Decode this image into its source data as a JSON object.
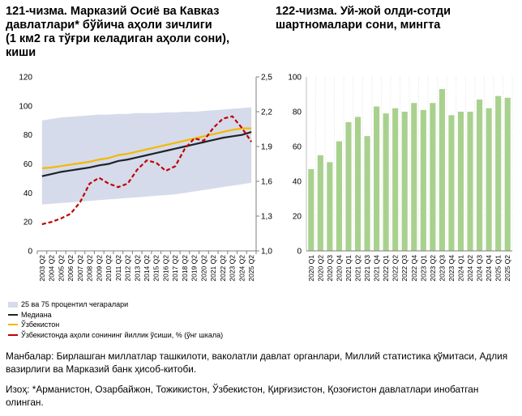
{
  "left_chart": {
    "title_lines": [
      "121-чизма. Марказий Осиё ва Кавказ",
      "давлатлари* бўйича аҳоли зичлиги",
      "(1 км2 га тўғри келадиган аҳоли сони),",
      "киши"
    ],
    "legend": [
      "25 ва 75 процентил чегаралари",
      "Медиана",
      "Ўзбекистон",
      "Ўзбекистонда аҳоли сонининг йиллик ўсиши, % (ўнг шкала)"
    ]
  },
  "right_chart": {
    "title_lines": [
      "122-чизма. Уй-жой олди-сотди",
      "шартномалари сони, мингта"
    ]
  },
  "notes": {
    "source": "Манбалар: Бирлашган миллатлар ташкилоти, ваколатли давлат органлари, Миллий статистика қўмитаси, Адлия вазирлиги ва Марказий банк ҳисоб-китоби.",
    "remark": "Изоҳ: *Арманистон, Озарбайжон, Тожикистон, Ўзбекистон, Қирғизистон, Қозоғистон давлатлари инобатган олинган."
  },
  "chart_data": [
    {
      "type": "line",
      "title": "121-чизма. Марказий Осиё ва Кавказ давлатлари* бўйича аҳоли зичлиги (1 км2 га тўғри келадиган аҳоли сони), киши",
      "x": [
        "2003 Q2",
        "2004 Q2",
        "2005 Q2",
        "2006 Q2",
        "2007 Q2",
        "2008 Q2",
        "2009 Q2",
        "2010 Q2",
        "2011 Q2",
        "2012 Q2",
        "2013 Q2",
        "2014 Q2",
        "2015 Q2",
        "2016 Q2",
        "2017 Q2",
        "2018 Q2",
        "2019 Q2",
        "2020 Q2",
        "2021 Q2",
        "2022 Q2",
        "2023 Q2",
        "2024 Q2",
        "2025 Q2"
      ],
      "ylim": [
        0,
        120
      ],
      "yticks": [
        "0",
        "20",
        "40",
        "60",
        "80",
        "100",
        "120"
      ],
      "y2lim": [
        1.0,
        2.5
      ],
      "y2ticks": [
        "1,0",
        "1,3",
        "1,6",
        "1,9",
        "2,2",
        "2,5"
      ],
      "series": [
        {
          "name": "25 ва 75 процентил чегаралари (25)",
          "axis": "left",
          "values": [
            32,
            32.5,
            33,
            33.5,
            34,
            34.5,
            35,
            35.5,
            36,
            36.5,
            37,
            37.5,
            38,
            38.5,
            39,
            40,
            41,
            42,
            43,
            44,
            45,
            46,
            47
          ]
        },
        {
          "name": "25 ва 75 процентил чегаралари (75)",
          "axis": "left",
          "values": [
            90,
            91,
            92,
            92.5,
            93,
            93.5,
            94,
            94,
            94.5,
            94.5,
            95,
            95,
            95,
            95.5,
            95.5,
            96,
            96,
            96.5,
            97,
            97.5,
            98,
            98.5,
            99
          ]
        },
        {
          "name": "Медиана",
          "axis": "left",
          "values": [
            51.5,
            53,
            54.5,
            55.5,
            56.5,
            57.5,
            59,
            60,
            62,
            63,
            64.5,
            66,
            67.5,
            69,
            70.5,
            72,
            73.5,
            75,
            76.5,
            78,
            79,
            80,
            82
          ]
        },
        {
          "name": "Ўзбекистон",
          "axis": "left",
          "values": [
            57,
            57.5,
            58.5,
            59.5,
            60.5,
            61.5,
            63,
            64,
            66,
            67,
            68.5,
            70,
            71.5,
            73,
            74.5,
            76,
            77.5,
            79,
            80.5,
            82,
            83.5,
            84.5,
            84.5
          ]
        },
        {
          "name": "Ўзбекистонда аҳоли сонининг йиллик ўсиши, % (ўнг шкала)",
          "axis": "right",
          "values": [
            1.23,
            1.25,
            1.28,
            1.32,
            1.42,
            1.58,
            1.63,
            1.58,
            1.55,
            1.58,
            1.7,
            1.78,
            1.76,
            1.69,
            1.73,
            1.88,
            1.97,
            1.95,
            2.06,
            2.14,
            2.16,
            2.06,
            1.94
          ]
        }
      ]
    },
    {
      "type": "bar",
      "title": "122-чизма. Уй-жой олди-сотди шартномалари сони, мингта",
      "categories": [
        "2020 Q1",
        "2020 Q2",
        "2020 Q3",
        "2020 Q4",
        "2021 Q1",
        "2021 Q2",
        "2021 Q3",
        "2021 Q4",
        "2022 Q1",
        "2022 Q2",
        "2022 Q3",
        "2022 Q4",
        "2023 Q1",
        "2023 Q2",
        "2023 Q3",
        "2023 Q4",
        "2024 Q1",
        "2024 Q2",
        "2024 Q3",
        "2024 Q4",
        "2025 Q1",
        "2025 Q2"
      ],
      "values": [
        47,
        55,
        51,
        63,
        74,
        77,
        66,
        83,
        79,
        82,
        80,
        85,
        81,
        85,
        93,
        78,
        80,
        80,
        87,
        82,
        89,
        88
      ],
      "ylim": [
        0,
        100
      ],
      "yticks": [
        "0",
        "20",
        "40",
        "60",
        "80",
        "100"
      ],
      "color": "#a9d18e"
    }
  ]
}
